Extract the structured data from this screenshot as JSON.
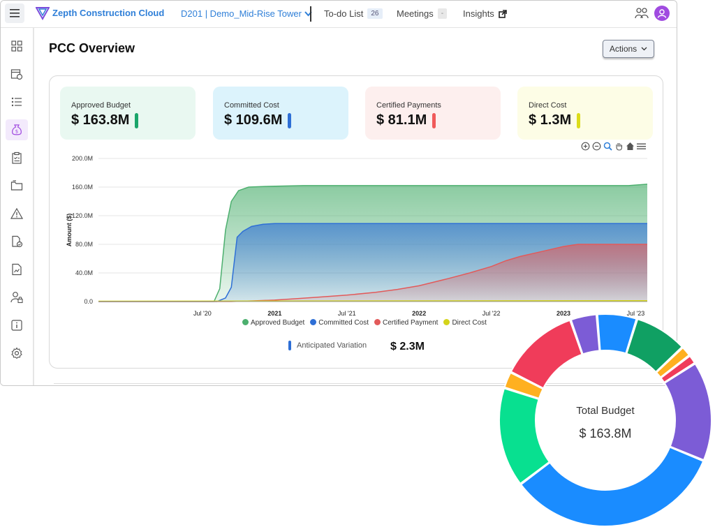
{
  "topbar": {
    "brand": "Zepth Construction Cloud",
    "project": "D201 | Demo_Mid-Rise Tower",
    "todo_label": "To-do List",
    "todo_count": "26",
    "meetings_label": "Meetings",
    "meetings_count": "-",
    "insights_label": "Insights"
  },
  "sidebar": {
    "items": [
      "dashboard-icon",
      "schedule-icon",
      "list-icon",
      "money-bag-icon",
      "checklist-icon",
      "folder-icon",
      "warning-icon",
      "document-check-icon",
      "file-chart-icon",
      "user-lock-icon",
      "info-icon",
      "gear-icon"
    ],
    "active_index": 3
  },
  "page": {
    "title": "PCC Overview",
    "actions_label": "Actions"
  },
  "kpis": [
    {
      "label": "Approved Budget",
      "value": "$ 163.8M",
      "color": "#1aa56a",
      "bg": "#e9f8f1"
    },
    {
      "label": "Committed Cost",
      "value": "$ 109.6M",
      "color": "#2e6fd6",
      "bg": "#dcf3fc"
    },
    {
      "label": "Certified Payments",
      "value": "$ 81.1M",
      "color": "#f05a5a",
      "bg": "#fdefee"
    },
    {
      "label": "Direct Cost",
      "value": "$ 1.3M",
      "color": "#dcdc1a",
      "bg": "#fdfde6"
    }
  ],
  "chart_data": {
    "type": "area",
    "ylabel": "Amount ($)",
    "ylim": [
      0,
      200
    ],
    "y_ticks": [
      "0.0",
      "40.0M",
      "80.0M",
      "120.0M",
      "160.0M",
      "200.0M"
    ],
    "x_ticks": [
      {
        "label": "Jul '20",
        "x": 2020.5,
        "bold": false
      },
      {
        "label": "2021",
        "x": 2021.0,
        "bold": true
      },
      {
        "label": "Jul '21",
        "x": 2021.5,
        "bold": false
      },
      {
        "label": "2022",
        "x": 2022.0,
        "bold": true
      },
      {
        "label": "Jul '22",
        "x": 2022.5,
        "bold": false
      },
      {
        "label": "2023",
        "x": 2023.0,
        "bold": true
      },
      {
        "label": "Jul '23",
        "x": 2023.5,
        "bold": false
      }
    ],
    "xlim": [
      2019.78,
      2023.58
    ],
    "series": [
      {
        "name": "Approved Budget",
        "color": "#4caf6e",
        "points": [
          [
            2019.78,
            0
          ],
          [
            2020.58,
            0
          ],
          [
            2020.62,
            18
          ],
          [
            2020.66,
            100
          ],
          [
            2020.7,
            140
          ],
          [
            2020.75,
            155
          ],
          [
            2020.82,
            160
          ],
          [
            2020.95,
            161
          ],
          [
            2021.2,
            162
          ],
          [
            2022.5,
            162
          ],
          [
            2023.45,
            162
          ],
          [
            2023.58,
            164
          ]
        ]
      },
      {
        "name": "Committed Cost",
        "color": "#2e6fd6",
        "points": [
          [
            2019.78,
            0
          ],
          [
            2020.6,
            0
          ],
          [
            2020.66,
            5
          ],
          [
            2020.7,
            20
          ],
          [
            2020.74,
            90
          ],
          [
            2020.78,
            98
          ],
          [
            2020.84,
            105
          ],
          [
            2020.92,
            108
          ],
          [
            2021.0,
            109
          ],
          [
            2023.58,
            109
          ]
        ]
      },
      {
        "name": "Certified Payment",
        "color": "#e25a5a",
        "points": [
          [
            2019.78,
            0
          ],
          [
            2020.7,
            0
          ],
          [
            2020.85,
            1
          ],
          [
            2021.0,
            2
          ],
          [
            2021.15,
            4
          ],
          [
            2021.3,
            6
          ],
          [
            2021.5,
            9
          ],
          [
            2021.7,
            13
          ],
          [
            2021.85,
            17
          ],
          [
            2022.0,
            22
          ],
          [
            2022.2,
            32
          ],
          [
            2022.35,
            40
          ],
          [
            2022.5,
            49
          ],
          [
            2022.6,
            57
          ],
          [
            2022.7,
            63
          ],
          [
            2022.85,
            70
          ],
          [
            2023.0,
            77
          ],
          [
            2023.1,
            80
          ],
          [
            2023.58,
            80
          ]
        ]
      },
      {
        "name": "Direct Cost",
        "color": "#d4d41a",
        "points": [
          [
            2019.78,
            0.5
          ],
          [
            2023.58,
            1.3
          ]
        ]
      }
    ],
    "legend": [
      "Approved Budget",
      "Committed Cost",
      "Certified Payment",
      "Direct Cost"
    ],
    "legend_position": "bottom"
  },
  "anticipated": {
    "label": "Anticipated Variation",
    "value": "$ 2.3M"
  },
  "donut": {
    "label": "Total Budget",
    "value": "$ 163.8M",
    "slices": [
      {
        "value": 6.0,
        "color": "#1a8cff"
      },
      {
        "value": 8.0,
        "color": "#10a063"
      },
      {
        "value": 1.6,
        "color": "#ffb020"
      },
      {
        "value": 1.4,
        "color": "#f03c5a"
      },
      {
        "value": 15.0,
        "color": "#7c5cd6"
      },
      {
        "value": 33.0,
        "color": "#1a8cff"
      },
      {
        "value": 15.0,
        "color": "#08e090"
      },
      {
        "value": 2.5,
        "color": "#ffb020"
      },
      {
        "value": 12.0,
        "color": "#f03c5a"
      },
      {
        "value": 4.0,
        "color": "#7c5cd6"
      }
    ]
  }
}
